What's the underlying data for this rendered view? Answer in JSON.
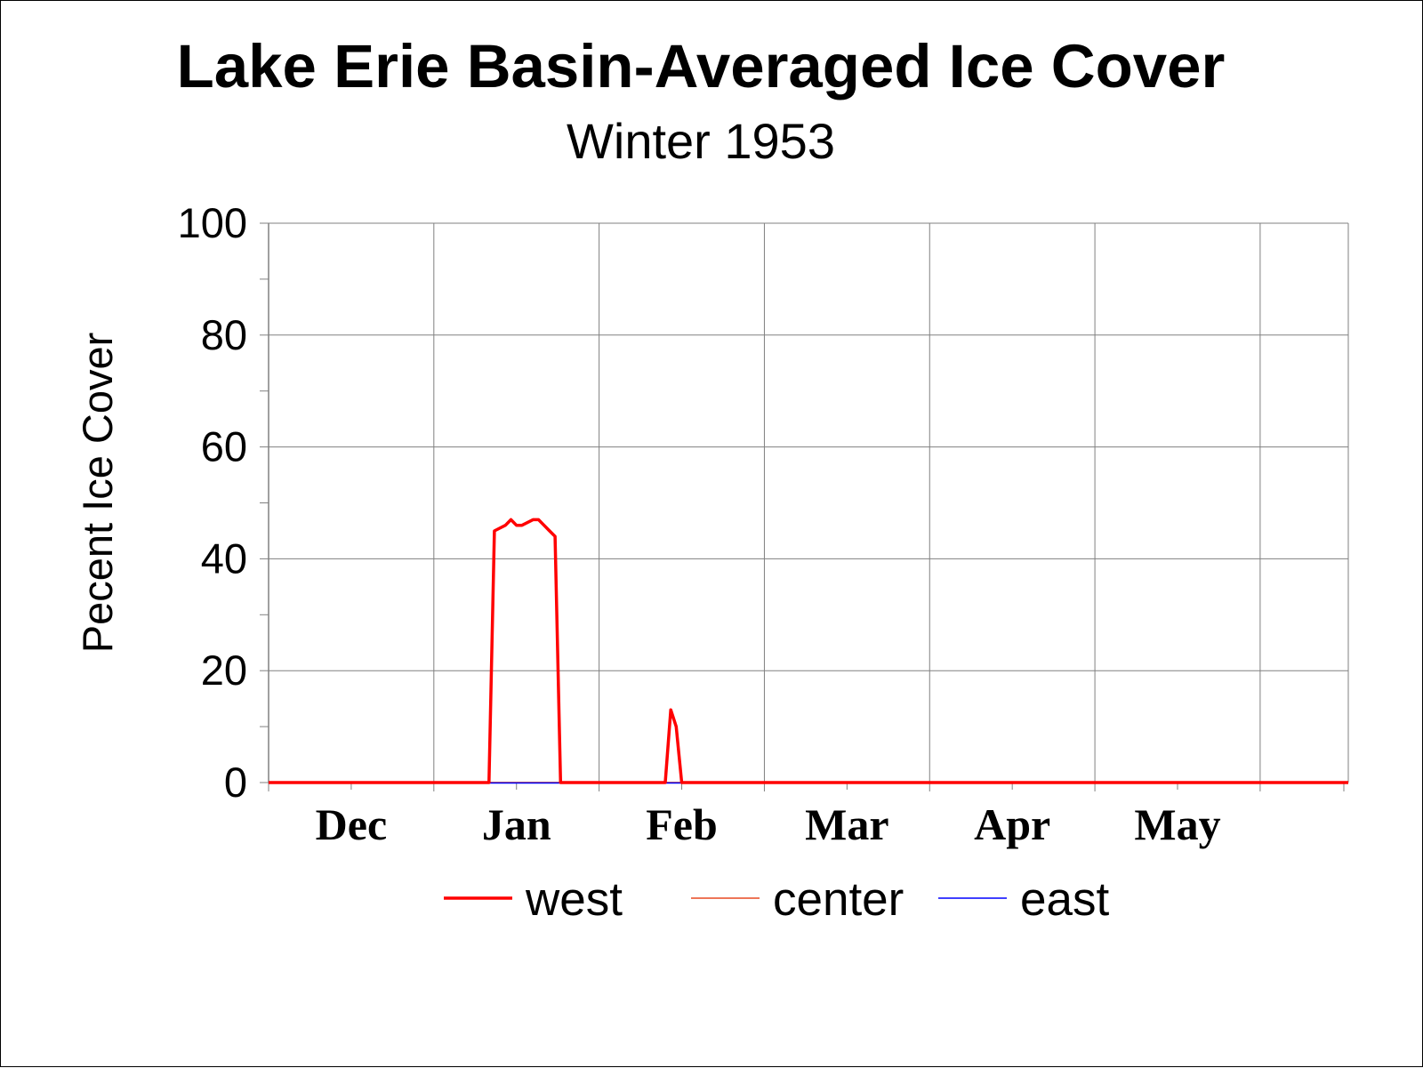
{
  "chart_data": {
    "type": "line",
    "title": "Lake Erie Basin-Averaged Ice Cover",
    "subtitle": "Winter 1953",
    "ylabel": "Pecent Ice Cover",
    "xlabel": "",
    "ylim": [
      0,
      100
    ],
    "yticks": [
      0,
      20,
      40,
      60,
      80,
      100
    ],
    "xlim": [
      "1952-11-16",
      "1953-05-31"
    ],
    "month_labels": [
      "Dec",
      "Jan",
      "Feb",
      "Mar",
      "Apr",
      "May"
    ],
    "grid": true,
    "legend_position": "bottom",
    "series": [
      {
        "name": "west",
        "color": "#ff0000",
        "points": [
          [
            "1952-11-16",
            0
          ],
          [
            "1952-12-26",
            0
          ],
          [
            "1952-12-27",
            45
          ],
          [
            "1952-12-29",
            46
          ],
          [
            "1952-12-30",
            47
          ],
          [
            "1952-12-31",
            46
          ],
          [
            "1953-01-01",
            46
          ],
          [
            "1953-01-03",
            47
          ],
          [
            "1953-01-04",
            47
          ],
          [
            "1953-01-05",
            46
          ],
          [
            "1953-01-06",
            45
          ],
          [
            "1953-01-07",
            44
          ],
          [
            "1953-01-08",
            0
          ],
          [
            "1953-01-27",
            0
          ],
          [
            "1953-01-28",
            13
          ],
          [
            "1953-01-29",
            10
          ],
          [
            "1953-01-30",
            0
          ],
          [
            "1953-05-31",
            0
          ]
        ]
      },
      {
        "name": "center",
        "color": "#e84820",
        "points": [
          [
            "1952-11-16",
            0
          ],
          [
            "1953-05-31",
            0
          ]
        ]
      },
      {
        "name": "east",
        "color": "#0000ff",
        "points": [
          [
            "1952-11-16",
            0
          ],
          [
            "1953-05-31",
            0
          ]
        ]
      }
    ]
  }
}
